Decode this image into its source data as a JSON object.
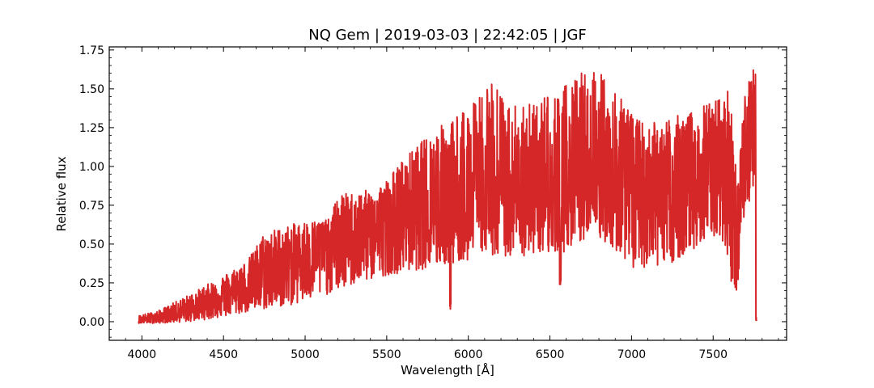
{
  "chart_data": {
    "type": "line",
    "title": "NQ Gem | 2019-03-03 | 22:42:05 | JGF",
    "xlabel": "Wavelength [Å]",
    "ylabel": "Relative flux",
    "xlim": [
      3800,
      7950
    ],
    "ylim": [
      -0.12,
      1.77
    ],
    "xticks": [
      4000,
      4500,
      5000,
      5500,
      6000,
      6500,
      7000,
      7500
    ],
    "xtick_labels": [
      "4000",
      "4500",
      "5000",
      "5500",
      "6000",
      "6500",
      "7000",
      "7500"
    ],
    "yticks": [
      0.0,
      0.25,
      0.5,
      0.75,
      1.0,
      1.25,
      1.5,
      1.75
    ],
    "ytick_labels": [
      "0.00",
      "0.25",
      "0.50",
      "0.75",
      "1.00",
      "1.25",
      "1.50",
      "1.75"
    ],
    "grid": false,
    "legend": "none",
    "series": [
      {
        "color": "#d62728",
        "wavelength_range": [
          3980,
          7765
        ],
        "continuum": {
          "x": [
            3980,
            4100,
            4300,
            4500,
            4700,
            5000,
            5200,
            5500,
            5800,
            6000,
            6300,
            6600,
            6800,
            7000,
            7200,
            7400,
            7550,
            7600,
            7650,
            7700,
            7765
          ],
          "y": [
            0.01,
            0.02,
            0.09,
            0.17,
            0.26,
            0.44,
            0.52,
            0.62,
            0.74,
            0.82,
            0.86,
            0.9,
            0.93,
            0.87,
            0.88,
            0.95,
            1.05,
            0.95,
            0.55,
            1.15,
            1.3
          ]
        },
        "upper_envelope": {
          "x": [
            3980,
            4100,
            4300,
            4500,
            4650,
            4750,
            5000,
            5150,
            5200,
            5400,
            5500,
            5600,
            5800,
            6000,
            6150,
            6300,
            6500,
            6700,
            6800,
            6900,
            7050,
            7200,
            7350,
            7500,
            7600,
            7650,
            7700,
            7765
          ],
          "y": [
            0.04,
            0.07,
            0.18,
            0.3,
            0.4,
            0.58,
            0.65,
            0.66,
            0.82,
            0.85,
            0.92,
            1.05,
            1.25,
            1.38,
            1.55,
            1.4,
            1.45,
            1.62,
            1.62,
            1.48,
            1.3,
            1.3,
            1.35,
            1.42,
            1.5,
            0.9,
            1.55,
            1.7
          ]
        },
        "lower_envelope": {
          "x": [
            3980,
            4100,
            4300,
            4500,
            4700,
            5000,
            5200,
            5500,
            5800,
            6000,
            6300,
            6600,
            6800,
            7000,
            7200,
            7400,
            7550,
            7600,
            7650,
            7700,
            7765
          ],
          "y": [
            -0.01,
            -0.01,
            0.0,
            0.03,
            0.07,
            0.12,
            0.2,
            0.3,
            0.35,
            0.4,
            0.42,
            0.45,
            0.55,
            0.35,
            0.35,
            0.45,
            0.55,
            0.25,
            0.15,
            0.7,
            0.85
          ]
        },
        "absorption_features": [
          {
            "x": 5890,
            "y": 0.08
          },
          {
            "x": 6563,
            "y": 0.22
          },
          {
            "x": 7765,
            "y": 0.0
          }
        ]
      }
    ]
  }
}
